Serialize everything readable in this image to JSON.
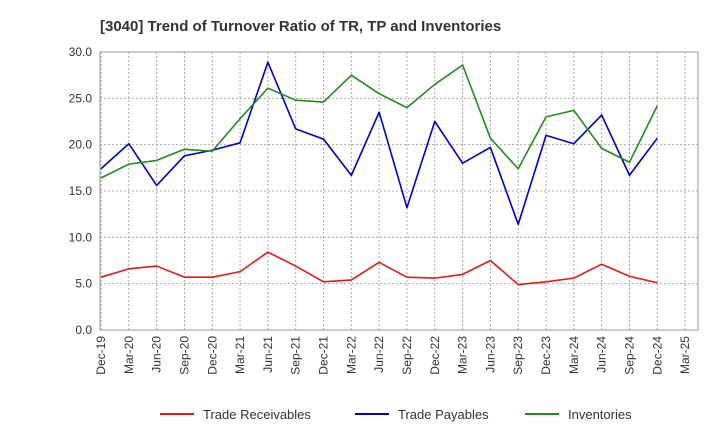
{
  "chart_data": {
    "type": "line",
    "title": "[3040]  Trend of Turnover Ratio of TR, TP and Inventories",
    "xlabel": "",
    "ylabel": "",
    "ylim": [
      0,
      30
    ],
    "yticks": [
      "0.0",
      "5.0",
      "10.0",
      "15.0",
      "20.0",
      "25.0",
      "30.0"
    ],
    "x": [
      "Dec-19",
      "Mar-20",
      "Jun-20",
      "Sep-20",
      "Dec-20",
      "Mar-21",
      "Jun-21",
      "Sep-21",
      "Dec-21",
      "Mar-22",
      "Jun-22",
      "Sep-22",
      "Dec-22",
      "Mar-23",
      "Jun-23",
      "Sep-23",
      "Dec-23",
      "Mar-24",
      "Jun-24",
      "Sep-24",
      "Dec-24",
      "Mar-25"
    ],
    "grid": true,
    "legend": "bottom",
    "series": [
      {
        "name": "Trade Receivables",
        "color": "#e31a1c",
        "values": [
          5.7,
          6.6,
          6.9,
          5.7,
          5.7,
          6.3,
          8.4,
          6.9,
          5.2,
          5.4,
          7.3,
          5.7,
          5.6,
          6.0,
          7.5,
          4.9,
          5.2,
          5.6,
          7.1,
          5.8,
          5.1,
          null
        ]
      },
      {
        "name": "Trade Payables",
        "color": "#0000cc",
        "values": [
          17.4,
          20.1,
          15.6,
          18.8,
          19.4,
          20.2,
          28.9,
          21.7,
          20.6,
          16.7,
          23.5,
          13.2,
          22.5,
          18.0,
          19.7,
          11.4,
          21.0,
          20.1,
          23.2,
          16.7,
          20.7,
          null
        ]
      },
      {
        "name": "Inventories",
        "color": "#228b22",
        "values": [
          16.4,
          17.9,
          18.3,
          19.5,
          19.3,
          22.8,
          26.1,
          24.8,
          24.6,
          27.5,
          25.5,
          24.0,
          26.5,
          28.6,
          20.7,
          17.4,
          23.0,
          23.7,
          19.6,
          18.1,
          24.2,
          null
        ]
      }
    ]
  }
}
